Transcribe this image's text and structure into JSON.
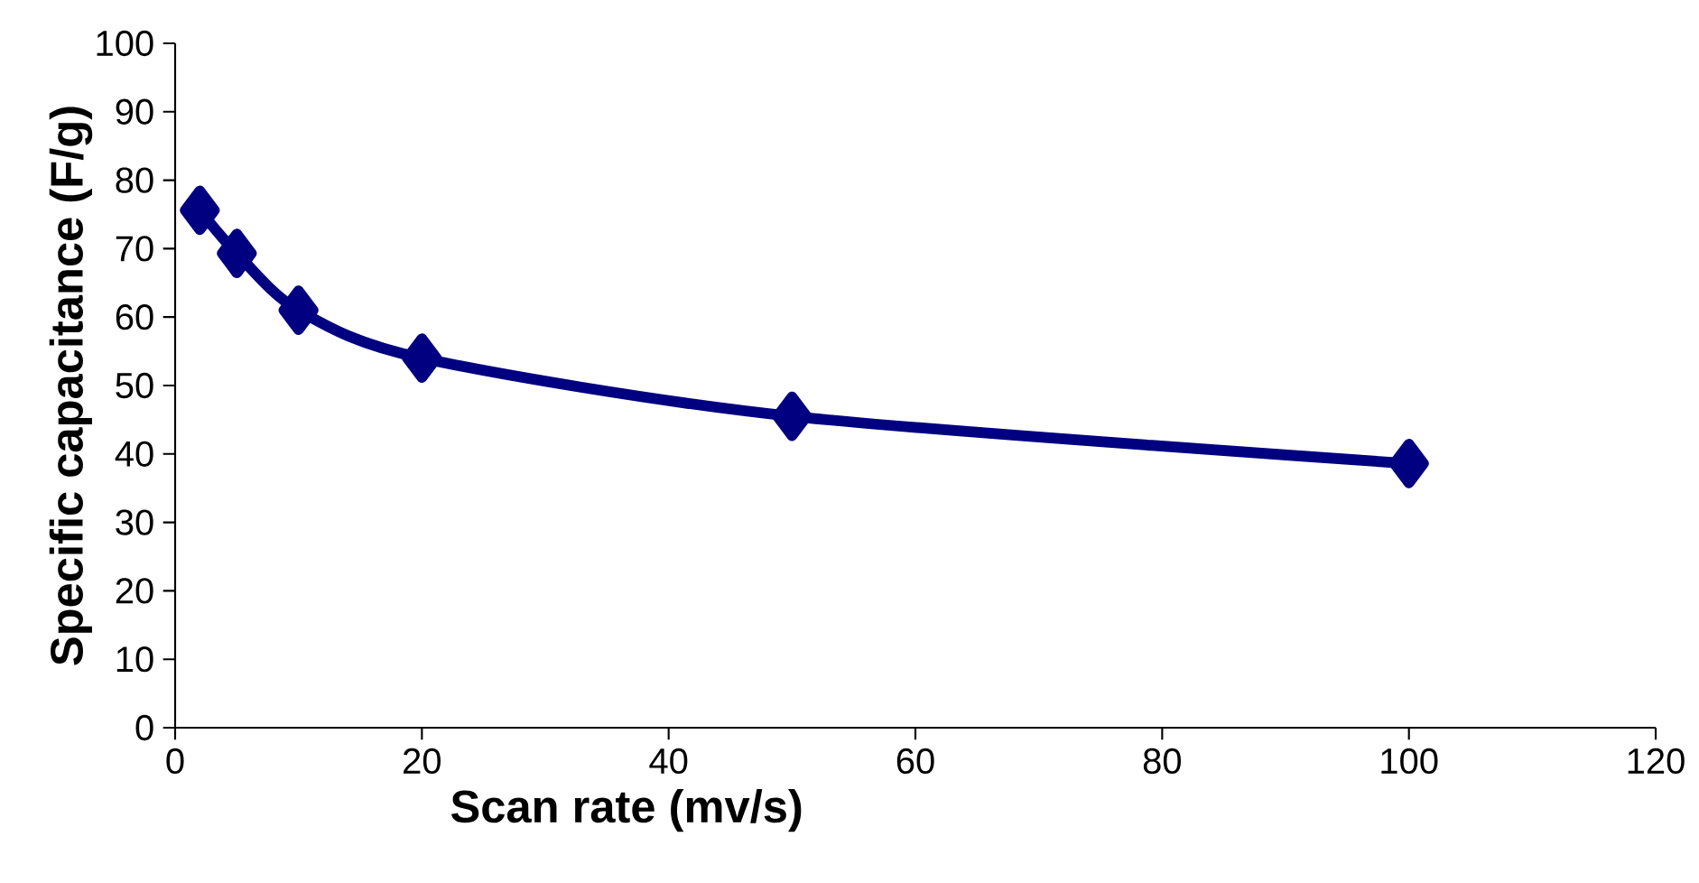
{
  "chart_data": {
    "type": "line",
    "xlabel": "Scan rate (mv/s)",
    "ylabel": "Specific capacitance (F/g)",
    "x": [
      2,
      5,
      10,
      20,
      50,
      100
    ],
    "series": [
      {
        "color": "#000080",
        "values": [
          75.6,
          69.3,
          61,
          54,
          45.5,
          38.6
        ]
      }
    ],
    "xlim": [
      0,
      120
    ],
    "xticks": [
      0,
      20,
      40,
      60,
      80,
      100,
      120
    ],
    "ylim": [
      0,
      100
    ],
    "yticks": [
      0,
      10,
      20,
      30,
      40,
      50,
      60,
      70,
      80,
      90,
      100
    ],
    "marker": "diamond",
    "line_style": "solid"
  }
}
